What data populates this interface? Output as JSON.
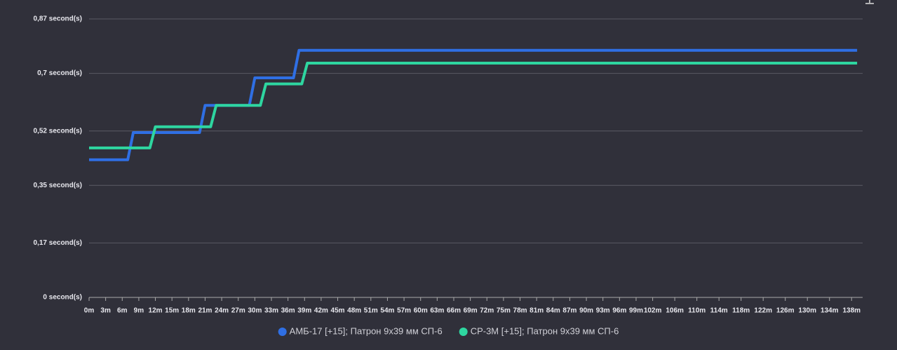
{
  "chart_data": {
    "type": "line",
    "ylim": [
      0,
      0.87
    ],
    "yticks": [
      {
        "value": 0,
        "label": "0 second(s)"
      },
      {
        "value": 0.17,
        "label": "0,17 second(s)"
      },
      {
        "value": 0.35,
        "label": "0,35 second(s)"
      },
      {
        "value": 0.52,
        "label": "0,52 second(s)"
      },
      {
        "value": 0.7,
        "label": "0,7 second(s)"
      },
      {
        "value": 0.87,
        "label": "0,87 second(s)"
      }
    ],
    "xlim": [
      0,
      140
    ],
    "xticks": [
      {
        "value": 0,
        "label": "0m"
      },
      {
        "value": 3,
        "label": "3m"
      },
      {
        "value": 6,
        "label": "6m"
      },
      {
        "value": 9,
        "label": "9m"
      },
      {
        "value": 12,
        "label": "12m"
      },
      {
        "value": 15,
        "label": "15m"
      },
      {
        "value": 18,
        "label": "18m"
      },
      {
        "value": 21,
        "label": "21m"
      },
      {
        "value": 24,
        "label": "24m"
      },
      {
        "value": 27,
        "label": "27m"
      },
      {
        "value": 30,
        "label": "30m"
      },
      {
        "value": 33,
        "label": "33m"
      },
      {
        "value": 36,
        "label": "36m"
      },
      {
        "value": 39,
        "label": "39m"
      },
      {
        "value": 42,
        "label": "42m"
      },
      {
        "value": 45,
        "label": "45m"
      },
      {
        "value": 48,
        "label": "48m"
      },
      {
        "value": 51,
        "label": "51m"
      },
      {
        "value": 54,
        "label": "54m"
      },
      {
        "value": 57,
        "label": "57m"
      },
      {
        "value": 60,
        "label": "60m"
      },
      {
        "value": 63,
        "label": "63m"
      },
      {
        "value": 66,
        "label": "66m"
      },
      {
        "value": 69,
        "label": "69m"
      },
      {
        "value": 72,
        "label": "72m"
      },
      {
        "value": 75,
        "label": "75m"
      },
      {
        "value": 78,
        "label": "78m"
      },
      {
        "value": 81,
        "label": "81m"
      },
      {
        "value": 84,
        "label": "84m"
      },
      {
        "value": 87,
        "label": "87m"
      },
      {
        "value": 90,
        "label": "90m"
      },
      {
        "value": 93,
        "label": "93m"
      },
      {
        "value": 96,
        "label": "96m"
      },
      {
        "value": 99,
        "label": "99m"
      },
      {
        "value": 102,
        "label": "102m"
      },
      {
        "value": 106,
        "label": "106m"
      },
      {
        "value": 110,
        "label": "110m"
      },
      {
        "value": 114,
        "label": "114m"
      },
      {
        "value": 118,
        "label": "118m"
      },
      {
        "value": 122,
        "label": "122m"
      },
      {
        "value": 126,
        "label": "126m"
      },
      {
        "value": 130,
        "label": "130m"
      },
      {
        "value": 134,
        "label": "134m"
      },
      {
        "value": 138,
        "label": "138m"
      }
    ],
    "grid": true,
    "series": [
      {
        "name": "АМБ-17 [+15]; Патрон 9x39 мм СП-6",
        "color": "#2f6fe4",
        "x": [
          0,
          7,
          8,
          20,
          21,
          29,
          30,
          37,
          38,
          139
        ],
        "values": [
          0.43,
          0.43,
          0.515,
          0.515,
          0.6,
          0.6,
          0.686,
          0.686,
          0.772,
          0.772
        ]
      },
      {
        "name": "СР-3М [+15]; Патрон 9x39 мм СП-6",
        "color": "#2ed6a0",
        "x": [
          0,
          11,
          12,
          22,
          23,
          31,
          32,
          38.5,
          39.5,
          139
        ],
        "values": [
          0.467,
          0.467,
          0.533,
          0.533,
          0.6,
          0.6,
          0.667,
          0.667,
          0.732,
          0.732
        ]
      }
    ]
  }
}
